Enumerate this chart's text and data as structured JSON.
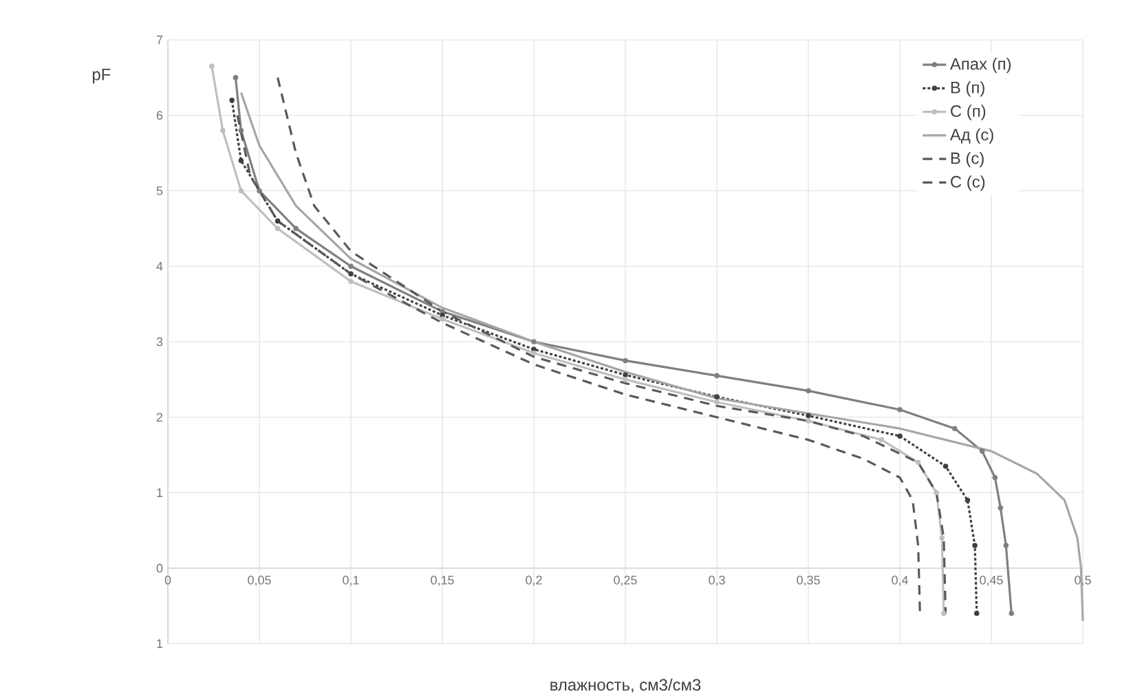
{
  "chart_data": {
    "type": "line",
    "xlabel": "влажность, см3/см3",
    "ylabel": "pF",
    "xlim": [
      0,
      0.5
    ],
    "ylim": [
      -1,
      7
    ],
    "xticks": [
      0,
      {
        "value": 0.05,
        "label": "0,05"
      },
      {
        "value": 0.1,
        "label": "0,1"
      },
      {
        "value": 0.15,
        "label": "0,15"
      },
      {
        "value": 0.2,
        "label": "0,2"
      },
      {
        "value": 0.25,
        "label": "0,25"
      },
      {
        "value": 0.3,
        "label": "0,3"
      },
      {
        "value": 0.35,
        "label": "0,35"
      },
      {
        "value": 0.4,
        "label": "0,4"
      },
      {
        "value": 0.45,
        "label": "0,45"
      },
      {
        "value": 0.5,
        "label": "0,5"
      }
    ],
    "yticks": [
      {
        "value": -1,
        "label": "1"
      },
      0,
      1,
      2,
      3,
      4,
      5,
      6,
      7
    ],
    "grid": true,
    "legend": "top right",
    "series": [
      {
        "name": "Апах (п)",
        "color": "#7f7f7f",
        "line_style": "solid",
        "marker": "circle",
        "x": [
          0.037,
          0.04,
          0.05,
          0.07,
          0.1,
          0.15,
          0.2,
          0.25,
          0.3,
          0.35,
          0.4,
          0.43,
          0.445,
          0.452,
          0.455,
          0.458,
          0.461
        ],
        "values": [
          6.5,
          5.8,
          5.0,
          4.5,
          4.0,
          3.4,
          3.0,
          2.75,
          2.55,
          2.35,
          2.1,
          1.85,
          1.55,
          1.2,
          0.8,
          0.3,
          -0.6
        ]
      },
      {
        "name": "В (п)",
        "color": "#404040",
        "line_style": "dotted",
        "marker": "circle",
        "x": [
          0.035,
          0.04,
          0.06,
          0.1,
          0.15,
          0.2,
          0.25,
          0.3,
          0.35,
          0.4,
          0.425,
          0.437,
          0.441,
          0.442
        ],
        "values": [
          6.2,
          5.4,
          4.6,
          3.9,
          3.35,
          2.9,
          2.56,
          2.27,
          2.02,
          1.75,
          1.35,
          0.9,
          0.3,
          -0.6
        ]
      },
      {
        "name": "С (п)",
        "color": "#bfbfbf",
        "line_style": "solid",
        "marker": "circle",
        "x": [
          0.024,
          0.03,
          0.04,
          0.06,
          0.1,
          0.15,
          0.2,
          0.25,
          0.3,
          0.35,
          0.39,
          0.41,
          0.42,
          0.423,
          0.424
        ],
        "values": [
          6.65,
          5.8,
          5.0,
          4.5,
          3.8,
          3.3,
          2.85,
          2.5,
          2.2,
          1.95,
          1.7,
          1.4,
          1.0,
          0.4,
          -0.6
        ]
      },
      {
        "name": "Ад (с)",
        "color": "#a6a6a6",
        "line_style": "solid",
        "marker": "none",
        "x": [
          0.04,
          0.05,
          0.07,
          0.1,
          0.15,
          0.2,
          0.25,
          0.3,
          0.35,
          0.4,
          0.45,
          0.475,
          0.49,
          0.497,
          0.499,
          0.5
        ],
        "values": [
          6.3,
          5.6,
          4.8,
          4.1,
          3.45,
          3.0,
          2.6,
          2.25,
          2.05,
          1.85,
          1.55,
          1.25,
          0.9,
          0.4,
          0.0,
          -0.7
        ]
      },
      {
        "name": "В (с)",
        "color": "#595959",
        "line_style": "dashed",
        "marker": "none",
        "x": [
          0.06,
          0.07,
          0.08,
          0.1,
          0.15,
          0.2,
          0.25,
          0.3,
          0.35,
          0.38,
          0.41,
          0.42,
          0.424,
          0.425
        ],
        "values": [
          6.5,
          5.5,
          4.8,
          4.2,
          3.4,
          2.8,
          2.45,
          2.15,
          1.95,
          1.75,
          1.4,
          1.0,
          0.4,
          -0.6
        ]
      },
      {
        "name": "С (с)",
        "color": "#595959",
        "line_style": "dashed",
        "marker": "none",
        "x": [
          0.038,
          0.045,
          0.06,
          0.1,
          0.15,
          0.2,
          0.25,
          0.3,
          0.35,
          0.38,
          0.4,
          0.407,
          0.41,
          0.411
        ],
        "values": [
          6.0,
          5.2,
          4.6,
          3.9,
          3.25,
          2.7,
          2.3,
          2.0,
          1.7,
          1.45,
          1.2,
          0.9,
          0.3,
          -0.6
        ]
      }
    ]
  }
}
